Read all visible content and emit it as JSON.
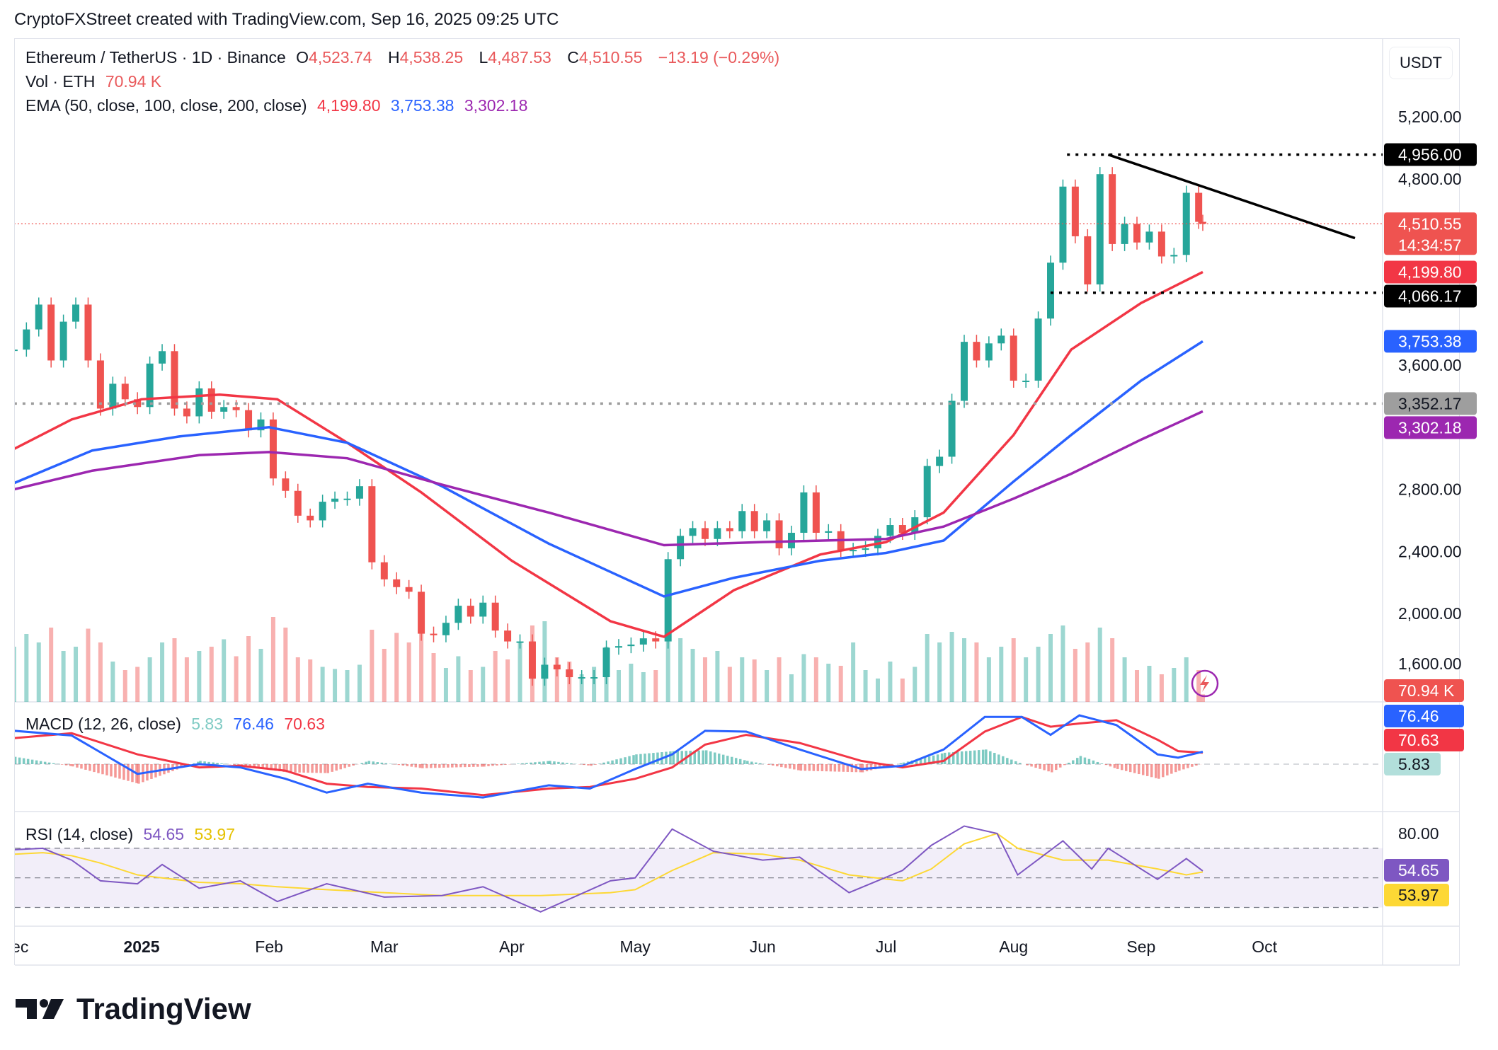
{
  "credit": "CryptoFXStreet created with TradingView.com, Sep 16, 2025 09:25 UTC",
  "legend": {
    "symbol": "Ethereum / TetherUS · 1D · Binance",
    "o_label": "O",
    "o": "4,523.74",
    "h_label": "H",
    "h": "4,538.25",
    "l_label": "L",
    "l": "4,487.53",
    "c_label": "C",
    "c": "4,510.55",
    "change": "−13.19 (−0.29%)",
    "vol_label": "Vol · ETH",
    "vol": "70.94 K",
    "ema_label": "EMA (50, close, 100, close, 200, close)",
    "ema50": "4,199.80",
    "ema100": "3,753.38",
    "ema200": "3,302.18",
    "macd_label": "MACD (12, 26, close)",
    "macd_hist": "5.83",
    "macd": "76.46",
    "macd_signal": "70.63",
    "rsi_label": "RSI (14, close)",
    "rsi": "54.65",
    "rsi_ma": "53.97"
  },
  "currency": "USDT",
  "colors": {
    "up": "#26a69a",
    "down": "#ef5350",
    "ema50": "#f23645",
    "ema100": "#2962ff",
    "ema200": "#9c27b0",
    "rsi": "#7e57c2",
    "rsi_ma": "#fdd835",
    "hist_up": "#26a69a",
    "hist_down": "#ef5350"
  },
  "price_axis": {
    "ticks": [
      "5,200.00",
      "4,800.00",
      "3,600.00",
      "2,800.00",
      "2,400.00",
      "2,000.00",
      "1,600.00"
    ],
    "tags": [
      {
        "label": "4,956.00",
        "value": 4956,
        "bg": "#000000",
        "fg": "#ffffff"
      },
      {
        "label": "4,510.55",
        "sub": "14:34:57",
        "value": 4510.55,
        "bg": "#ef5350",
        "fg": "#ffffff"
      },
      {
        "label": "4,199.80",
        "value": 4199.8,
        "bg": "#f23645",
        "fg": "#ffffff"
      },
      {
        "label": "4,066.17",
        "value": 4066.17,
        "bg": "#000000",
        "fg": "#ffffff"
      },
      {
        "label": "3,753.38",
        "value": 3753.38,
        "bg": "#2962ff",
        "fg": "#ffffff"
      },
      {
        "label": "3,352.17",
        "value": 3352.17,
        "bg": "#9e9e9e",
        "fg": "#131722"
      },
      {
        "label": "3,302.18",
        "value": 3302.18,
        "bg": "#9c27b0",
        "fg": "#ffffff"
      }
    ],
    "vol_tag": "70.94 K",
    "macd_tags": [
      {
        "label": "76.46",
        "bg": "#2962ff",
        "fg": "#ffffff"
      },
      {
        "label": "70.63",
        "bg": "#f23645",
        "fg": "#ffffff"
      },
      {
        "label": "5.83",
        "bg": "#b2dfdb",
        "fg": "#131722"
      }
    ],
    "rsi_ticks": [
      "80.00"
    ],
    "rsi_tags": [
      {
        "label": "54.65",
        "bg": "#7e57c2",
        "fg": "#ffffff"
      },
      {
        "label": "53.97",
        "bg": "#fdd835",
        "fg": "#131722"
      }
    ]
  },
  "time_axis": [
    {
      "label": "Dec",
      "date": "2024-12-01"
    },
    {
      "label": "2025",
      "date": "2025-01-01",
      "bold": true
    },
    {
      "label": "Feb",
      "date": "2025-02-01"
    },
    {
      "label": "Mar",
      "date": "2025-03-01"
    },
    {
      "label": "Apr",
      "date": "2025-04-01"
    },
    {
      "label": "May",
      "date": "2025-05-01"
    },
    {
      "label": "Jun",
      "date": "2025-06-01"
    },
    {
      "label": "Jul",
      "date": "2025-07-01"
    },
    {
      "label": "Aug",
      "date": "2025-08-01"
    },
    {
      "label": "Sep",
      "date": "2025-09-01"
    },
    {
      "label": "Oct",
      "date": "2025-10-01"
    }
  ],
  "chart_data": {
    "type": "candlestick",
    "price_range": [
      1500,
      5400
    ],
    "candles_close_volk": [
      [
        "2024-12-01",
        3700,
        520
      ],
      [
        "2024-12-04",
        3830,
        640
      ],
      [
        "2024-12-07",
        3990,
        560
      ],
      [
        "2024-12-10",
        3630,
        700
      ],
      [
        "2024-12-13",
        3880,
        480
      ],
      [
        "2024-12-16",
        3990,
        520
      ],
      [
        "2024-12-19",
        3630,
        690
      ],
      [
        "2024-12-22",
        3320,
        560
      ],
      [
        "2024-12-25",
        3480,
        380
      ],
      [
        "2024-12-28",
        3380,
        300
      ],
      [
        "2024-12-31",
        3330,
        330
      ],
      [
        "2025-01-03",
        3610,
        420
      ],
      [
        "2025-01-06",
        3690,
        560
      ],
      [
        "2025-01-09",
        3320,
        600
      ],
      [
        "2025-01-12",
        3270,
        420
      ],
      [
        "2025-01-15",
        3450,
        480
      ],
      [
        "2025-01-18",
        3300,
        520
      ],
      [
        "2025-01-21",
        3330,
        590
      ],
      [
        "2025-01-24",
        3310,
        430
      ],
      [
        "2025-01-27",
        3180,
        620
      ],
      [
        "2025-01-30",
        3250,
        500
      ],
      [
        "2025-02-02",
        2870,
        800
      ],
      [
        "2025-02-05",
        2790,
        700
      ],
      [
        "2025-02-08",
        2630,
        420
      ],
      [
        "2025-02-11",
        2600,
        400
      ],
      [
        "2025-02-14",
        2720,
        330
      ],
      [
        "2025-02-17",
        2740,
        310
      ],
      [
        "2025-02-20",
        2740,
        300
      ],
      [
        "2025-02-23",
        2820,
        350
      ],
      [
        "2025-02-26",
        2330,
        680
      ],
      [
        "2025-03-01",
        2220,
        500
      ],
      [
        "2025-03-04",
        2170,
        650
      ],
      [
        "2025-03-07",
        2140,
        560
      ],
      [
        "2025-03-10",
        1870,
        690
      ],
      [
        "2025-03-13",
        1860,
        460
      ],
      [
        "2025-03-16",
        1940,
        320
      ],
      [
        "2025-03-19",
        2050,
        430
      ],
      [
        "2025-03-22",
        1980,
        300
      ],
      [
        "2025-03-25",
        2070,
        330
      ],
      [
        "2025-03-28",
        1890,
        480
      ],
      [
        "2025-03-31",
        1820,
        400
      ],
      [
        "2025-04-03",
        1820,
        560
      ],
      [
        "2025-04-06",
        1580,
        720
      ],
      [
        "2025-04-09",
        1670,
        760
      ],
      [
        "2025-04-12",
        1640,
        420
      ],
      [
        "2025-04-15",
        1590,
        380
      ],
      [
        "2025-04-18",
        1590,
        260
      ],
      [
        "2025-04-21",
        1590,
        330
      ],
      [
        "2025-04-24",
        1780,
        520
      ],
      [
        "2025-04-27",
        1790,
        300
      ],
      [
        "2025-04-30",
        1800,
        360
      ],
      [
        "2025-05-03",
        1840,
        280
      ],
      [
        "2025-05-06",
        1820,
        300
      ],
      [
        "2025-05-09",
        2350,
        700
      ],
      [
        "2025-05-12",
        2500,
        600
      ],
      [
        "2025-05-15",
        2550,
        500
      ],
      [
        "2025-05-18",
        2480,
        420
      ],
      [
        "2025-05-21",
        2550,
        480
      ],
      [
        "2025-05-24",
        2530,
        330
      ],
      [
        "2025-05-27",
        2660,
        420
      ],
      [
        "2025-05-30",
        2530,
        400
      ],
      [
        "2025-06-02",
        2600,
        300
      ],
      [
        "2025-06-05",
        2420,
        420
      ],
      [
        "2025-06-08",
        2520,
        260
      ],
      [
        "2025-06-11",
        2780,
        450
      ],
      [
        "2025-06-14",
        2520,
        420
      ],
      [
        "2025-06-17",
        2530,
        360
      ],
      [
        "2025-06-20",
        2410,
        340
      ],
      [
        "2025-06-23",
        2410,
        560
      ],
      [
        "2025-06-26",
        2420,
        300
      ],
      [
        "2025-06-29",
        2500,
        220
      ],
      [
        "2025-07-02",
        2570,
        380
      ],
      [
        "2025-07-05",
        2520,
        220
      ],
      [
        "2025-07-08",
        2620,
        330
      ],
      [
        "2025-07-11",
        2950,
        640
      ],
      [
        "2025-07-14",
        3010,
        560
      ],
      [
        "2025-07-17",
        3370,
        660
      ],
      [
        "2025-07-20",
        3750,
        600
      ],
      [
        "2025-07-23",
        3630,
        560
      ],
      [
        "2025-07-26",
        3740,
        420
      ],
      [
        "2025-07-29",
        3790,
        520
      ],
      [
        "2025-08-01",
        3500,
        600
      ],
      [
        "2025-08-04",
        3500,
        420
      ],
      [
        "2025-08-07",
        3900,
        520
      ],
      [
        "2025-08-10",
        4260,
        640
      ],
      [
        "2025-08-13",
        4750,
        720
      ],
      [
        "2025-08-16",
        4430,
        500
      ],
      [
        "2025-08-19",
        4120,
        560
      ],
      [
        "2025-08-22",
        4830,
        700
      ],
      [
        "2025-08-25",
        4380,
        600
      ],
      [
        "2025-08-28",
        4510,
        420
      ],
      [
        "2025-08-31",
        4390,
        300
      ],
      [
        "2025-09-03",
        4460,
        340
      ],
      [
        "2025-09-06",
        4300,
        260
      ],
      [
        "2025-09-09",
        4310,
        320
      ],
      [
        "2025-09-12",
        4710,
        420
      ],
      [
        "2025-09-15",
        4523,
        300
      ],
      [
        "2025-09-16",
        4510.55,
        71
      ]
    ],
    "ema": [
      {
        "name": "EMA 50",
        "color": "#f23645",
        "points": [
          [
            "2024-12-01",
            3060
          ],
          [
            "2024-12-15",
            3250
          ],
          [
            "2025-01-01",
            3380
          ],
          [
            "2025-01-20",
            3410
          ],
          [
            "2025-02-03",
            3380
          ],
          [
            "2025-02-20",
            3100
          ],
          [
            "2025-03-10",
            2780
          ],
          [
            "2025-04-01",
            2340
          ],
          [
            "2025-04-25",
            1950
          ],
          [
            "2025-05-08",
            1850
          ],
          [
            "2025-05-25",
            2150
          ],
          [
            "2025-06-15",
            2380
          ],
          [
            "2025-07-01",
            2460
          ],
          [
            "2025-07-15",
            2650
          ],
          [
            "2025-08-01",
            3150
          ],
          [
            "2025-08-15",
            3700
          ],
          [
            "2025-09-01",
            4000
          ],
          [
            "2025-09-16",
            4199.8
          ]
        ]
      },
      {
        "name": "EMA 100",
        "color": "#2962ff",
        "points": [
          [
            "2024-12-01",
            2840
          ],
          [
            "2024-12-20",
            3050
          ],
          [
            "2025-01-10",
            3140
          ],
          [
            "2025-02-01",
            3200
          ],
          [
            "2025-02-20",
            3100
          ],
          [
            "2025-03-15",
            2820
          ],
          [
            "2025-04-10",
            2450
          ],
          [
            "2025-05-08",
            2110
          ],
          [
            "2025-05-25",
            2230
          ],
          [
            "2025-06-15",
            2340
          ],
          [
            "2025-07-01",
            2390
          ],
          [
            "2025-07-15",
            2470
          ],
          [
            "2025-08-01",
            2850
          ],
          [
            "2025-08-15",
            3150
          ],
          [
            "2025-09-01",
            3500
          ],
          [
            "2025-09-16",
            3753.38
          ]
        ]
      },
      {
        "name": "EMA 200",
        "color": "#9c27b0",
        "points": [
          [
            "2024-12-01",
            2800
          ],
          [
            "2024-12-20",
            2920
          ],
          [
            "2025-01-15",
            3020
          ],
          [
            "2025-02-01",
            3040
          ],
          [
            "2025-02-20",
            3000
          ],
          [
            "2025-03-15",
            2830
          ],
          [
            "2025-04-10",
            2650
          ],
          [
            "2025-05-08",
            2440
          ],
          [
            "2025-06-01",
            2460
          ],
          [
            "2025-07-01",
            2480
          ],
          [
            "2025-07-15",
            2560
          ],
          [
            "2025-08-01",
            2740
          ],
          [
            "2025-08-15",
            2900
          ],
          [
            "2025-09-01",
            3120
          ],
          [
            "2025-09-16",
            3302.18
          ]
        ]
      }
    ],
    "levels": [
      {
        "value": 4956,
        "from": "2025-08-14",
        "style": "dotted",
        "color": "#000000"
      },
      {
        "value": 4066.17,
        "from": "2025-08-10",
        "style": "dotted",
        "color": "#000000"
      },
      {
        "value": 3352.17,
        "from": "2024-12-01",
        "style": "dotted",
        "color": "#9e9e9e"
      },
      {
        "value": 4510.55,
        "from": "2024-12-01",
        "style": "dotted",
        "color": "#ef5350"
      }
    ],
    "trendline": [
      [
        "2025-08-24",
        4956
      ],
      [
        "2025-10-23",
        4418
      ]
    ],
    "macd": {
      "zero": 0,
      "points": [
        [
          "2024-12-01",
          205,
          160
        ],
        [
          "2024-12-15",
          176,
          190
        ],
        [
          "2024-12-31",
          -60,
          60
        ],
        [
          "2025-01-15",
          0,
          -20
        ],
        [
          "2025-01-25",
          -20,
          -10
        ],
        [
          "2025-02-05",
          -90,
          -40
        ],
        [
          "2025-02-15",
          -175,
          -120
        ],
        [
          "2025-02-25",
          -120,
          -140
        ],
        [
          "2025-03-10",
          -175,
          -150
        ],
        [
          "2025-03-25",
          -205,
          -190
        ],
        [
          "2025-04-10",
          -130,
          -150
        ],
        [
          "2025-04-20",
          -150,
          -140
        ],
        [
          "2025-05-01",
          -30,
          -90
        ],
        [
          "2025-05-10",
          60,
          -20
        ],
        [
          "2025-05-18",
          205,
          120
        ],
        [
          "2025-05-28",
          200,
          180
        ],
        [
          "2025-06-10",
          90,
          130
        ],
        [
          "2025-06-25",
          -30,
          20
        ],
        [
          "2025-07-05",
          -10,
          -20
        ],
        [
          "2025-07-15",
          90,
          20
        ],
        [
          "2025-07-25",
          290,
          200
        ],
        [
          "2025-08-03",
          290,
          290
        ],
        [
          "2025-08-10",
          180,
          230
        ],
        [
          "2025-08-17",
          300,
          250
        ],
        [
          "2025-08-26",
          240,
          270
        ],
        [
          "2025-09-05",
          60,
          150
        ],
        [
          "2025-09-10",
          40,
          80
        ],
        [
          "2025-09-16",
          76.46,
          70.63
        ]
      ]
    },
    "rsi": {
      "bands": [
        30,
        70
      ],
      "points": [
        [
          "2024-12-01",
          69,
          66
        ],
        [
          "2024-12-08",
          70,
          67
        ],
        [
          "2024-12-15",
          62,
          65
        ],
        [
          "2024-12-22",
          48,
          60
        ],
        [
          "2024-12-31",
          46,
          52
        ],
        [
          "2025-01-06",
          59,
          50
        ],
        [
          "2025-01-15",
          43,
          47
        ],
        [
          "2025-01-25",
          48,
          46
        ],
        [
          "2025-02-03",
          34,
          44
        ],
        [
          "2025-02-15",
          46,
          42
        ],
        [
          "2025-03-01",
          37,
          40
        ],
        [
          "2025-03-15",
          38,
          38
        ],
        [
          "2025-03-25",
          44,
          38
        ],
        [
          "2025-04-08",
          27,
          38
        ],
        [
          "2025-04-25",
          48,
          40
        ],
        [
          "2025-05-01",
          50,
          42
        ],
        [
          "2025-05-10",
          83,
          55
        ],
        [
          "2025-05-20",
          68,
          67
        ],
        [
          "2025-06-01",
          62,
          66
        ],
        [
          "2025-06-10",
          64,
          62
        ],
        [
          "2025-06-22",
          40,
          52
        ],
        [
          "2025-07-05",
          55,
          48
        ],
        [
          "2025-07-12",
          72,
          56
        ],
        [
          "2025-07-20",
          85,
          73
        ],
        [
          "2025-07-28",
          80,
          80
        ],
        [
          "2025-08-02",
          52,
          70
        ],
        [
          "2025-08-13",
          75,
          62
        ],
        [
          "2025-08-20",
          56,
          62
        ],
        [
          "2025-08-24",
          70,
          62
        ],
        [
          "2025-09-05",
          49,
          56
        ],
        [
          "2025-09-12",
          63,
          52
        ],
        [
          "2025-09-16",
          54.65,
          53.97
        ]
      ]
    }
  },
  "logo_text": "TradingView"
}
